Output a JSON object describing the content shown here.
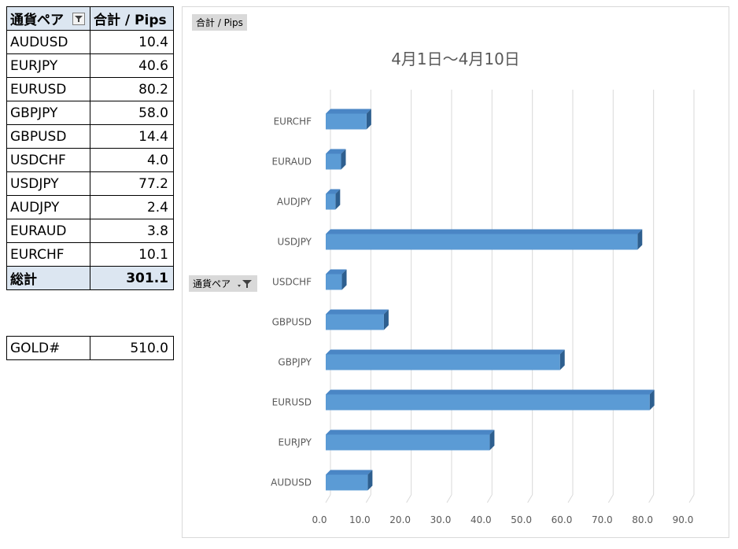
{
  "table": {
    "header": {
      "col1": "通貨ペア",
      "col2": "合計 / Pips"
    },
    "rows": [
      {
        "pair": "AUDUSD",
        "pips": "10.4"
      },
      {
        "pair": "EURJPY",
        "pips": "40.6"
      },
      {
        "pair": "EURUSD",
        "pips": "80.2"
      },
      {
        "pair": "GBPJPY",
        "pips": "58.0"
      },
      {
        "pair": "GBPUSD",
        "pips": "14.4"
      },
      {
        "pair": "USDCHF",
        "pips": "4.0"
      },
      {
        "pair": "USDJPY",
        "pips": "77.2"
      },
      {
        "pair": "AUDJPY",
        "pips": "2.4"
      },
      {
        "pair": "EURAUD",
        "pips": "3.8"
      },
      {
        "pair": "EURCHF",
        "pips": "10.1"
      }
    ],
    "total": {
      "label": "総計",
      "value": "301.1"
    }
  },
  "gold": {
    "label": "GOLD#",
    "value": "510.0"
  },
  "chart_buttons": {
    "values_field": "合計 / Pips",
    "axis_field": "通貨ペア"
  },
  "colors": {
    "bar": "#5b9bd5",
    "bar_top": "#4a86c5",
    "bar_side": "#2e5f8f",
    "grid": "#d9d9d9",
    "header_bg": "#dce6f1"
  },
  "chart_data": {
    "type": "bar",
    "orientation": "horizontal",
    "title": "4月1日～4月10日",
    "categories": [
      "AUDUSD",
      "EURJPY",
      "EURUSD",
      "GBPJPY",
      "GBPUSD",
      "USDCHF",
      "USDJPY",
      "AUDJPY",
      "EURAUD",
      "EURCHF"
    ],
    "values": [
      10.4,
      40.6,
      80.2,
      58.0,
      14.4,
      4.0,
      77.2,
      2.4,
      3.8,
      10.1
    ],
    "xlim": [
      0,
      90
    ],
    "xticks": [
      "0.0",
      "10.0",
      "20.0",
      "30.0",
      "40.0",
      "50.0",
      "60.0",
      "70.0",
      "80.0",
      "90.0"
    ],
    "grid": true,
    "legend": "none",
    "style": "3d"
  }
}
